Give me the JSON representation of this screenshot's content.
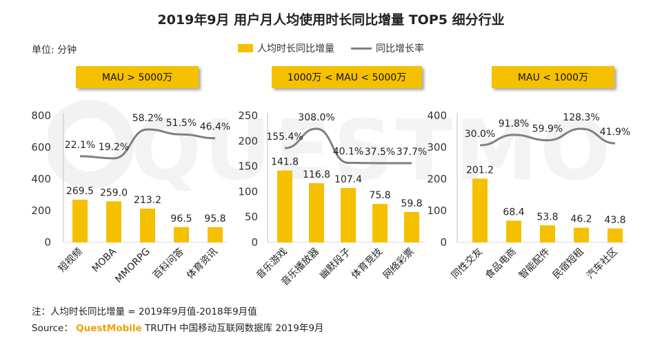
{
  "title": "2019年9月 用户月人均使用时长同比增量 TOP5 细分行业",
  "unit": "单位: 分钟",
  "legend": {
    "bar": "人均时长同比增量",
    "line": "同比增长率"
  },
  "colors": {
    "bar": "#f5c000",
    "line": "#7f7f7f",
    "banner": "#f5c000"
  },
  "chart_data": [
    {
      "type": "bar+line",
      "group_label": "MAU > 5000万",
      "categories": [
        "短视频",
        "MOBA",
        "MMORPG",
        "百科问答",
        "体育资讯"
      ],
      "values": [
        269.5,
        259.0,
        213.2,
        96.5,
        95.8
      ],
      "value_labels": [
        "269.5",
        "259.0",
        "213.2",
        "96.5",
        "95.8"
      ],
      "growth": [
        22.1,
        19.2,
        58.2,
        51.5,
        46.4
      ],
      "growth_labels": [
        "22.1%",
        "19.2%",
        "58.2%",
        "51.5%",
        "46.4%"
      ],
      "yticks": [
        "0",
        "200",
        "400",
        "600",
        "800"
      ],
      "ylim": [
        0,
        800
      ]
    },
    {
      "type": "bar+line",
      "group_label": "1000万 < MAU < 5000万",
      "categories": [
        "音乐游戏",
        "音乐播放器",
        "幽默段子",
        "体育竞技",
        "网络彩票"
      ],
      "values": [
        141.8,
        116.8,
        107.4,
        75.8,
        59.8
      ],
      "value_labels": [
        "141.8",
        "116.8",
        "107.4",
        "75.8",
        "59.8"
      ],
      "growth": [
        155.4,
        308.0,
        40.1,
        37.5,
        37.7
      ],
      "growth_labels": [
        "155.4%",
        "308.0%",
        "40.1%",
        "37.5%",
        "37.7%"
      ],
      "yticks": [
        "0",
        "50",
        "100",
        "150",
        "200",
        "250"
      ],
      "ylim": [
        0,
        250
      ]
    },
    {
      "type": "bar+line",
      "group_label": "MAU < 1000万",
      "categories": [
        "同性交友",
        "食品电商",
        "智能配件",
        "民宿短租",
        "汽车社区"
      ],
      "values": [
        201.2,
        68.4,
        53.8,
        46.2,
        43.8
      ],
      "value_labels": [
        "201.2",
        "68.4",
        "53.8",
        "46.2",
        "43.8"
      ],
      "growth": [
        30.0,
        91.8,
        59.9,
        128.3,
        41.9
      ],
      "growth_labels": [
        "30.0%",
        "91.8%",
        "59.9%",
        "128.3%",
        "41.9%"
      ],
      "yticks": [
        "0",
        "100",
        "200",
        "300",
        "400"
      ],
      "ylim": [
        0,
        400
      ]
    }
  ],
  "watermark": "QUESTMOBILE",
  "footnote": "注：人均时长同比增量 = 2019年9月值-2018年9月值",
  "source": {
    "prefix": "Source：",
    "brand": "QuestMobile",
    "suffix": "TRUTH 中国移动互联网数据库 2019年9月"
  }
}
